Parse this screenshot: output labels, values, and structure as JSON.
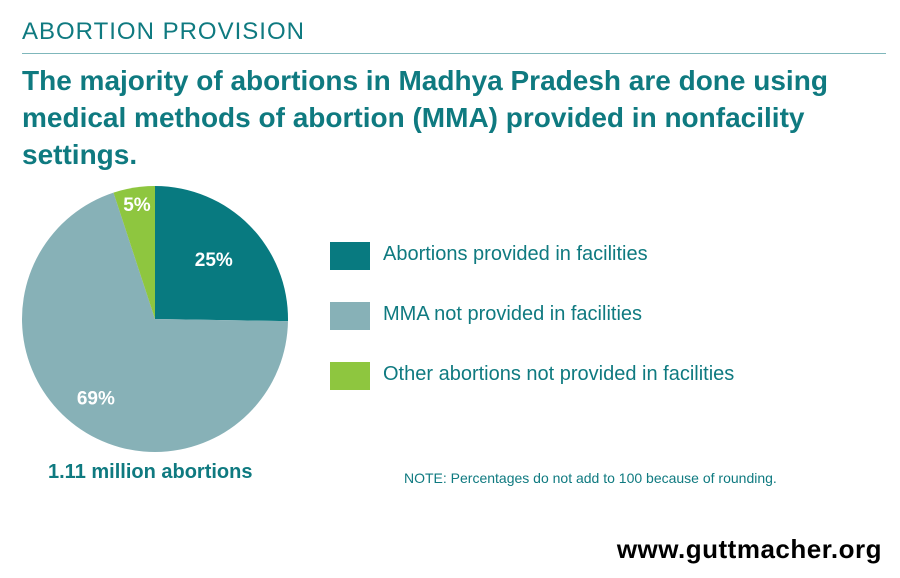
{
  "section_label": "ABORTION PROVISION",
  "headline": "The majority of abortions in Madhya Pradesh are done using medical methods of abortion (MMA) provided in nonfacility settings.",
  "chart_data": {
    "type": "pie",
    "slices": [
      {
        "label": "Abortions provided in facilities",
        "value": 25,
        "value_label": "25%",
        "color": "#087a80"
      },
      {
        "label": "MMA not provided in facilities",
        "value": 69,
        "value_label": "69%",
        "color": "#87b1b7"
      },
      {
        "label": "Other abortions not provided in facilities",
        "value": 5,
        "value_label": "5%",
        "color": "#8ec63f"
      }
    ],
    "legend_placement": "right",
    "total_label": "1.11 million abortions",
    "note": "NOTE: Percentages do not add to 100 because of rounding."
  },
  "footer": {
    "url": "www.guttmacher.org"
  }
}
